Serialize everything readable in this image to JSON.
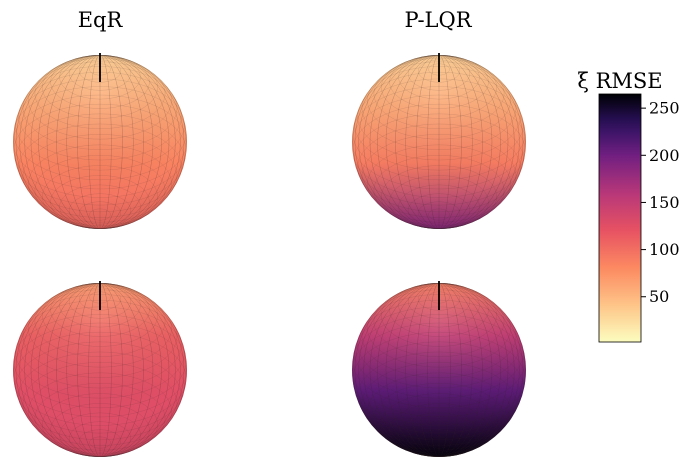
{
  "figure": {
    "panel_titles": [
      "EqR",
      "P-LQR"
    ],
    "colorbar_title": "ξ RMSE"
  },
  "chart_data": {
    "type": "heatmap",
    "layout": "2x2 grid of spheres (orthographic view) colored by RMSE, shared colorbar on the right",
    "columns": [
      "EqR",
      "P-LQR"
    ],
    "colormap": "magma_r",
    "colorbar": {
      "label": "ξ RMSE",
      "range": [
        2,
        265
      ],
      "ticks": [
        50,
        100,
        150,
        200,
        250
      ],
      "tick_labels": [
        "50",
        "100",
        "150",
        "200",
        "250"
      ]
    },
    "panels": [
      {
        "row": 1,
        "column": "EqR",
        "rmse_top": 35,
        "rmse_upper": 60,
        "rmse_middle": 85,
        "rmse_bottom": 105
      },
      {
        "row": 1,
        "column": "P-LQR",
        "rmse_top": 35,
        "rmse_upper": 60,
        "rmse_middle": 90,
        "rmse_bottom": 185
      },
      {
        "row": 2,
        "column": "EqR",
        "rmse_top": 70,
        "rmse_upper": 110,
        "rmse_middle": 125,
        "rmse_bottom": 130
      },
      {
        "row": 2,
        "column": "P-LQR",
        "rmse_top": 90,
        "rmse_upper": 150,
        "rmse_middle": 210,
        "rmse_bottom": 262
      }
    ]
  }
}
